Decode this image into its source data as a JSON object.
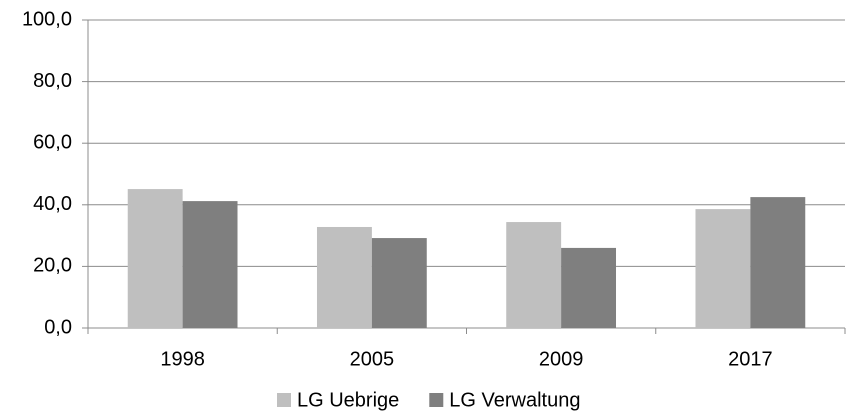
{
  "chart_data": {
    "type": "bar",
    "categories": [
      "1998",
      "2005",
      "2009",
      "2017"
    ],
    "series": [
      {
        "name": "LG Uebrige",
        "color": "#bfbfbf",
        "values": [
          45.1,
          32.8,
          34.4,
          38.6
        ]
      },
      {
        "name": "LG Verwaltung",
        "color": "#7f7f7f",
        "values": [
          41.2,
          29.2,
          26.0,
          42.5
        ]
      }
    ],
    "ylim": [
      0,
      100
    ],
    "yticks": [
      {
        "value": 0,
        "label": "0,0"
      },
      {
        "value": 20,
        "label": "20,0"
      },
      {
        "value": 40,
        "label": "40,0"
      },
      {
        "value": 60,
        "label": "60,0"
      },
      {
        "value": 80,
        "label": "80,0"
      },
      {
        "value": 100,
        "label": "100,0"
      }
    ],
    "grid": true,
    "legend": "bottom"
  }
}
